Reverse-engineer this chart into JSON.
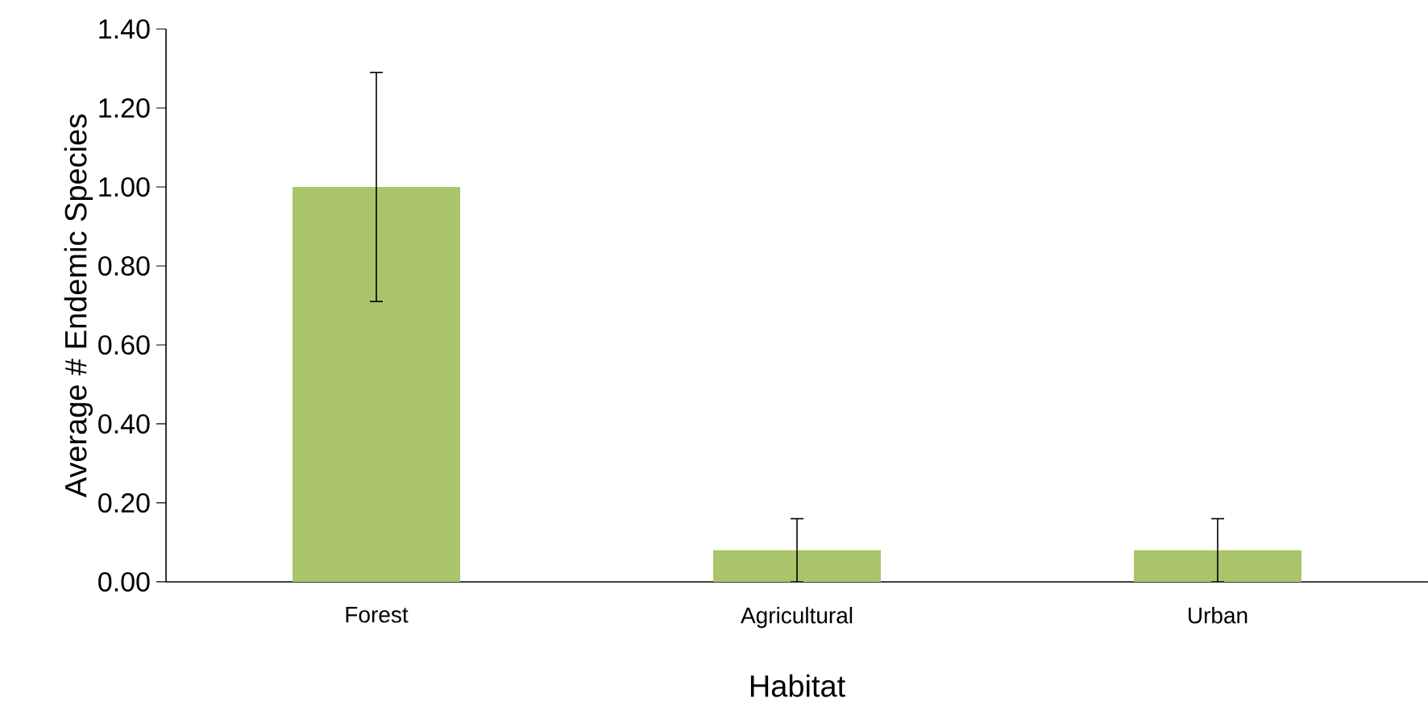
{
  "chart_data": {
    "type": "bar",
    "xlabel": "Habitat",
    "ylabel": "Average # Endemic Species",
    "categories": [
      "Forest",
      "Agricultural",
      "Urban"
    ],
    "values": [
      1.0,
      0.08,
      0.08
    ],
    "errors": [
      0.29,
      0.08,
      0.08
    ],
    "color": "#a9c46a",
    "ylim": [
      0,
      1.4
    ],
    "yticks": [
      {
        "value": 0,
        "label": "0.00"
      },
      {
        "value": 0.2,
        "label": "0.20"
      },
      {
        "value": 0.4,
        "label": "0.40"
      },
      {
        "value": 0.6,
        "label": "0.60"
      },
      {
        "value": 0.8,
        "label": "0.80"
      },
      {
        "value": 1.0,
        "label": "1.00"
      },
      {
        "value": 1.2,
        "label": "1.20"
      },
      {
        "value": 1.4,
        "label": "1.40"
      }
    ],
    "grid": false
  }
}
